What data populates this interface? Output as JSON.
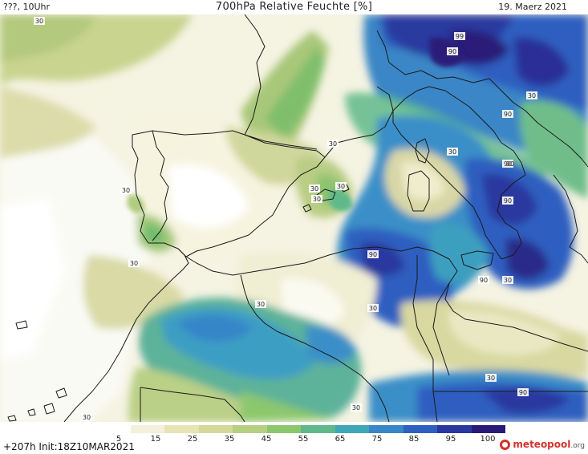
{
  "header": {
    "left": "???, 10Uhr",
    "title": "700hPa Relative Feuchte [%]",
    "date": "19. Maerz 2021"
  },
  "footer": {
    "lead": "+207h",
    "init": "Init:18Z10MAR2021"
  },
  "brand": {
    "name": "meteopool",
    "tld": ".org",
    "color": "#d4322c"
  },
  "colorbar": {
    "ticks": [
      "5",
      "15",
      "25",
      "35",
      "45",
      "55",
      "65",
      "75",
      "85",
      "95",
      "100"
    ],
    "colors": [
      "#ffffff",
      "#f3f0dc",
      "#e7e4b6",
      "#d4d99a",
      "#b6cf83",
      "#8cc76d",
      "#5fb98a",
      "#3fa7b6",
      "#3686c8",
      "#2f5fc0",
      "#29379f",
      "#2a1a78"
    ]
  },
  "contour_labels": [
    "30",
    "30",
    "30",
    "30",
    "30",
    "30",
    "30",
    "30",
    "30",
    "30",
    "30",
    "30",
    "30",
    "30",
    "30",
    "90",
    "90",
    "90",
    "90",
    "90",
    "90",
    "90",
    "90",
    "99"
  ]
}
